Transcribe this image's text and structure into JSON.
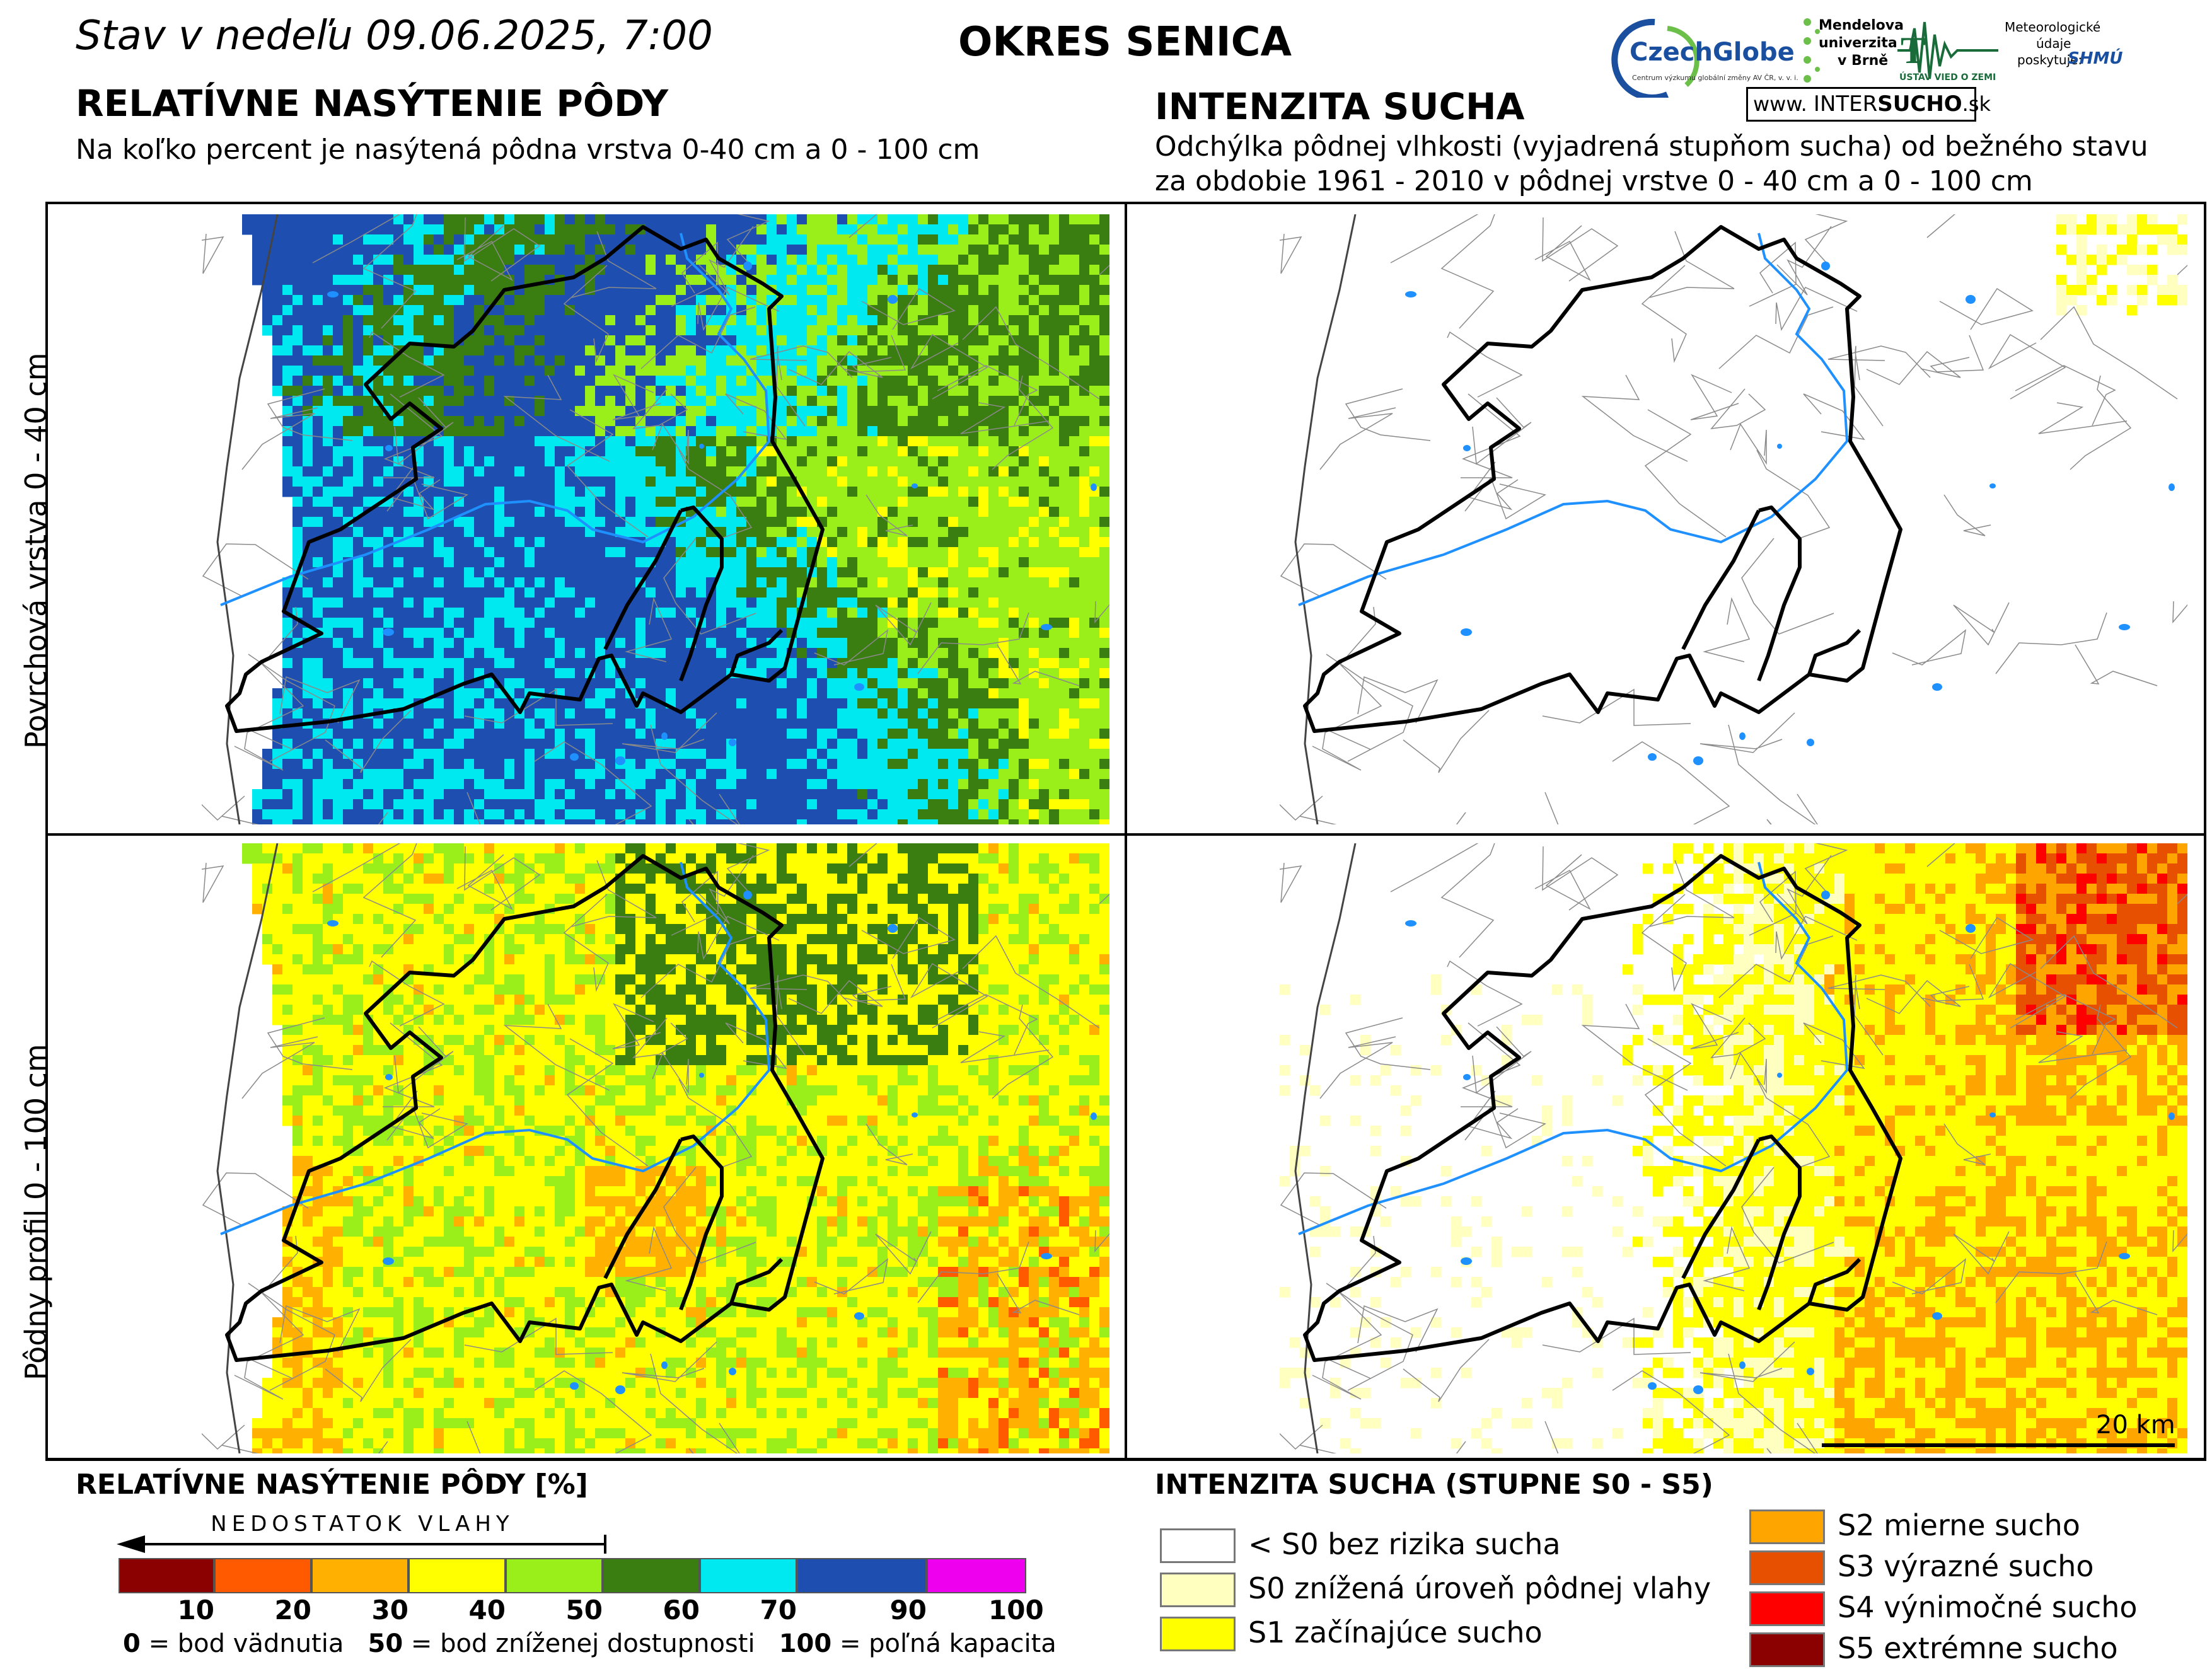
{
  "header": {
    "date": "Stav v nedeľu 09.06.2025, 7:00",
    "district": "OKRES SENICA",
    "left_title": "RELATÍVNE NASÝTENIE PÔDY",
    "left_subtitle": "Na koľko percent je nasýtená pôdna vrstva 0-40 cm a 0 - 100 cm",
    "right_title": "INTENZITA SUCHA",
    "right_subtitle_1": "Odchýlka pôdnej vlhkosti (vyjadrená stupňom sucha) od bežného stavu",
    "right_subtitle_2": "za obdobie 1961 - 2010 v pôdnej vrstve 0 - 40 cm a 0 - 100 cm"
  },
  "logos": {
    "czechglobe": "CzechGlobe",
    "czechglobe_sub": "Centrum výzkumu globální změny AV ČR, v. v. i.",
    "mendel_1": "Mendelova",
    "mendel_2": "univerzita",
    "mendel_3": "v Brně",
    "uvz": "ÚSTAV VIED O ZEMI",
    "met_1": "Meteorologické",
    "met_2": "údaje",
    "met_3": "poskytuje:",
    "shmu": "SHMÚ",
    "intersucho_prefix": "www.",
    "intersucho_a": "INTER",
    "intersucho_b": "SUCHO",
    "intersucho_c": ".sk"
  },
  "rows": {
    "top": "Povrchová vrstva 0 - 40 cm",
    "bottom": "Pôdny profil 0 - 100 cm"
  },
  "scale_bar": "20 km",
  "legend_saturation": {
    "title": "RELATÍVNE NASÝTENIE PÔDY [%]",
    "arrow_label": "NEDOSTATOK VLAHY",
    "colors": [
      "#8b0000",
      "#ff5a00",
      "#ffb000",
      "#ffff00",
      "#9aef1a",
      "#3a7d10",
      "#00e8f0",
      "#1e4fb0",
      "#ee00ee"
    ],
    "ticks": [
      "10",
      "20",
      "30",
      "40",
      "50",
      "60",
      "70",
      "90",
      "100"
    ],
    "note_0_num": "0",
    "note_0_text": "= bod vädnutia",
    "note_50_num": "50",
    "note_50_text": "= bod zníženej dostupnosti",
    "note_100_num": "100",
    "note_100_text": "= poľná kapacita"
  },
  "legend_drought": {
    "title": "INTENZITA SUCHA (STUPNE S0 - S5)",
    "items": [
      {
        "label": "< S0 bez rizika sucha",
        "color": "#ffffff"
      },
      {
        "label": "S0 znížená úroveň pôdnej vlahy",
        "color": "#ffffc0"
      },
      {
        "label": "S1 začínajúce sucho",
        "color": "#ffff00"
      },
      {
        "label": "S2 mierne sucho",
        "color": "#ffa500"
      },
      {
        "label": "S3 výrazné sucho",
        "color": "#e65000"
      },
      {
        "label": "S4 výnimočné sucho",
        "color": "#ff0000"
      },
      {
        "label": "S5 extrémne sucho",
        "color": "#8b0000"
      }
    ]
  }
}
